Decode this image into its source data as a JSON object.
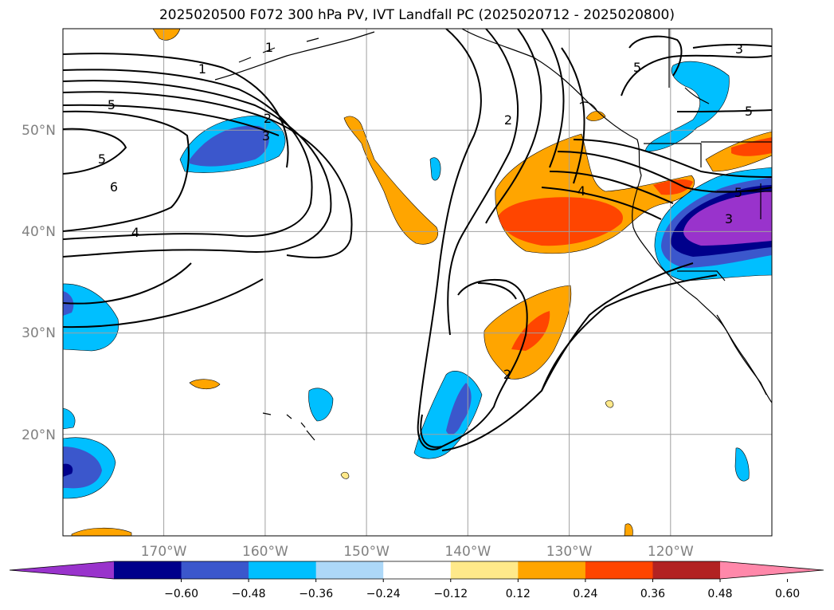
{
  "title": "2025020500 F072 300 hPa PV, IVT Landfall PC (2025020712 - 2025020800)",
  "map": {
    "lon_range": [
      -180,
      -110
    ],
    "lat_range": [
      10,
      60
    ],
    "lon_ticks": [
      "170°W",
      "160°W",
      "150°W",
      "140°W",
      "130°W",
      "120°W"
    ],
    "lat_ticks": [
      "50°N",
      "40°N",
      "30°N",
      "20°N"
    ],
    "grid": true,
    "contour_labels": [
      "1",
      "2",
      "3",
      "4",
      "5",
      "6",
      "5",
      "4",
      "2",
      "2",
      "4",
      "4",
      "3",
      "3",
      "5",
      "5",
      "2"
    ]
  },
  "colorbar": {
    "ticks": [
      "−0.60",
      "−0.48",
      "−0.36",
      "−0.24",
      "−0.12",
      "0.12",
      "0.24",
      "0.36",
      "0.48",
      "0.60"
    ],
    "colors": [
      "#9933cc",
      "#00008b",
      "#3b57cc",
      "#00bfff",
      "#add8f8",
      "#ffffff",
      "#ffe98a",
      "#ffa500",
      "#ff4500",
      "#b22222",
      "#ff88aa"
    ],
    "extend": "both"
  }
}
